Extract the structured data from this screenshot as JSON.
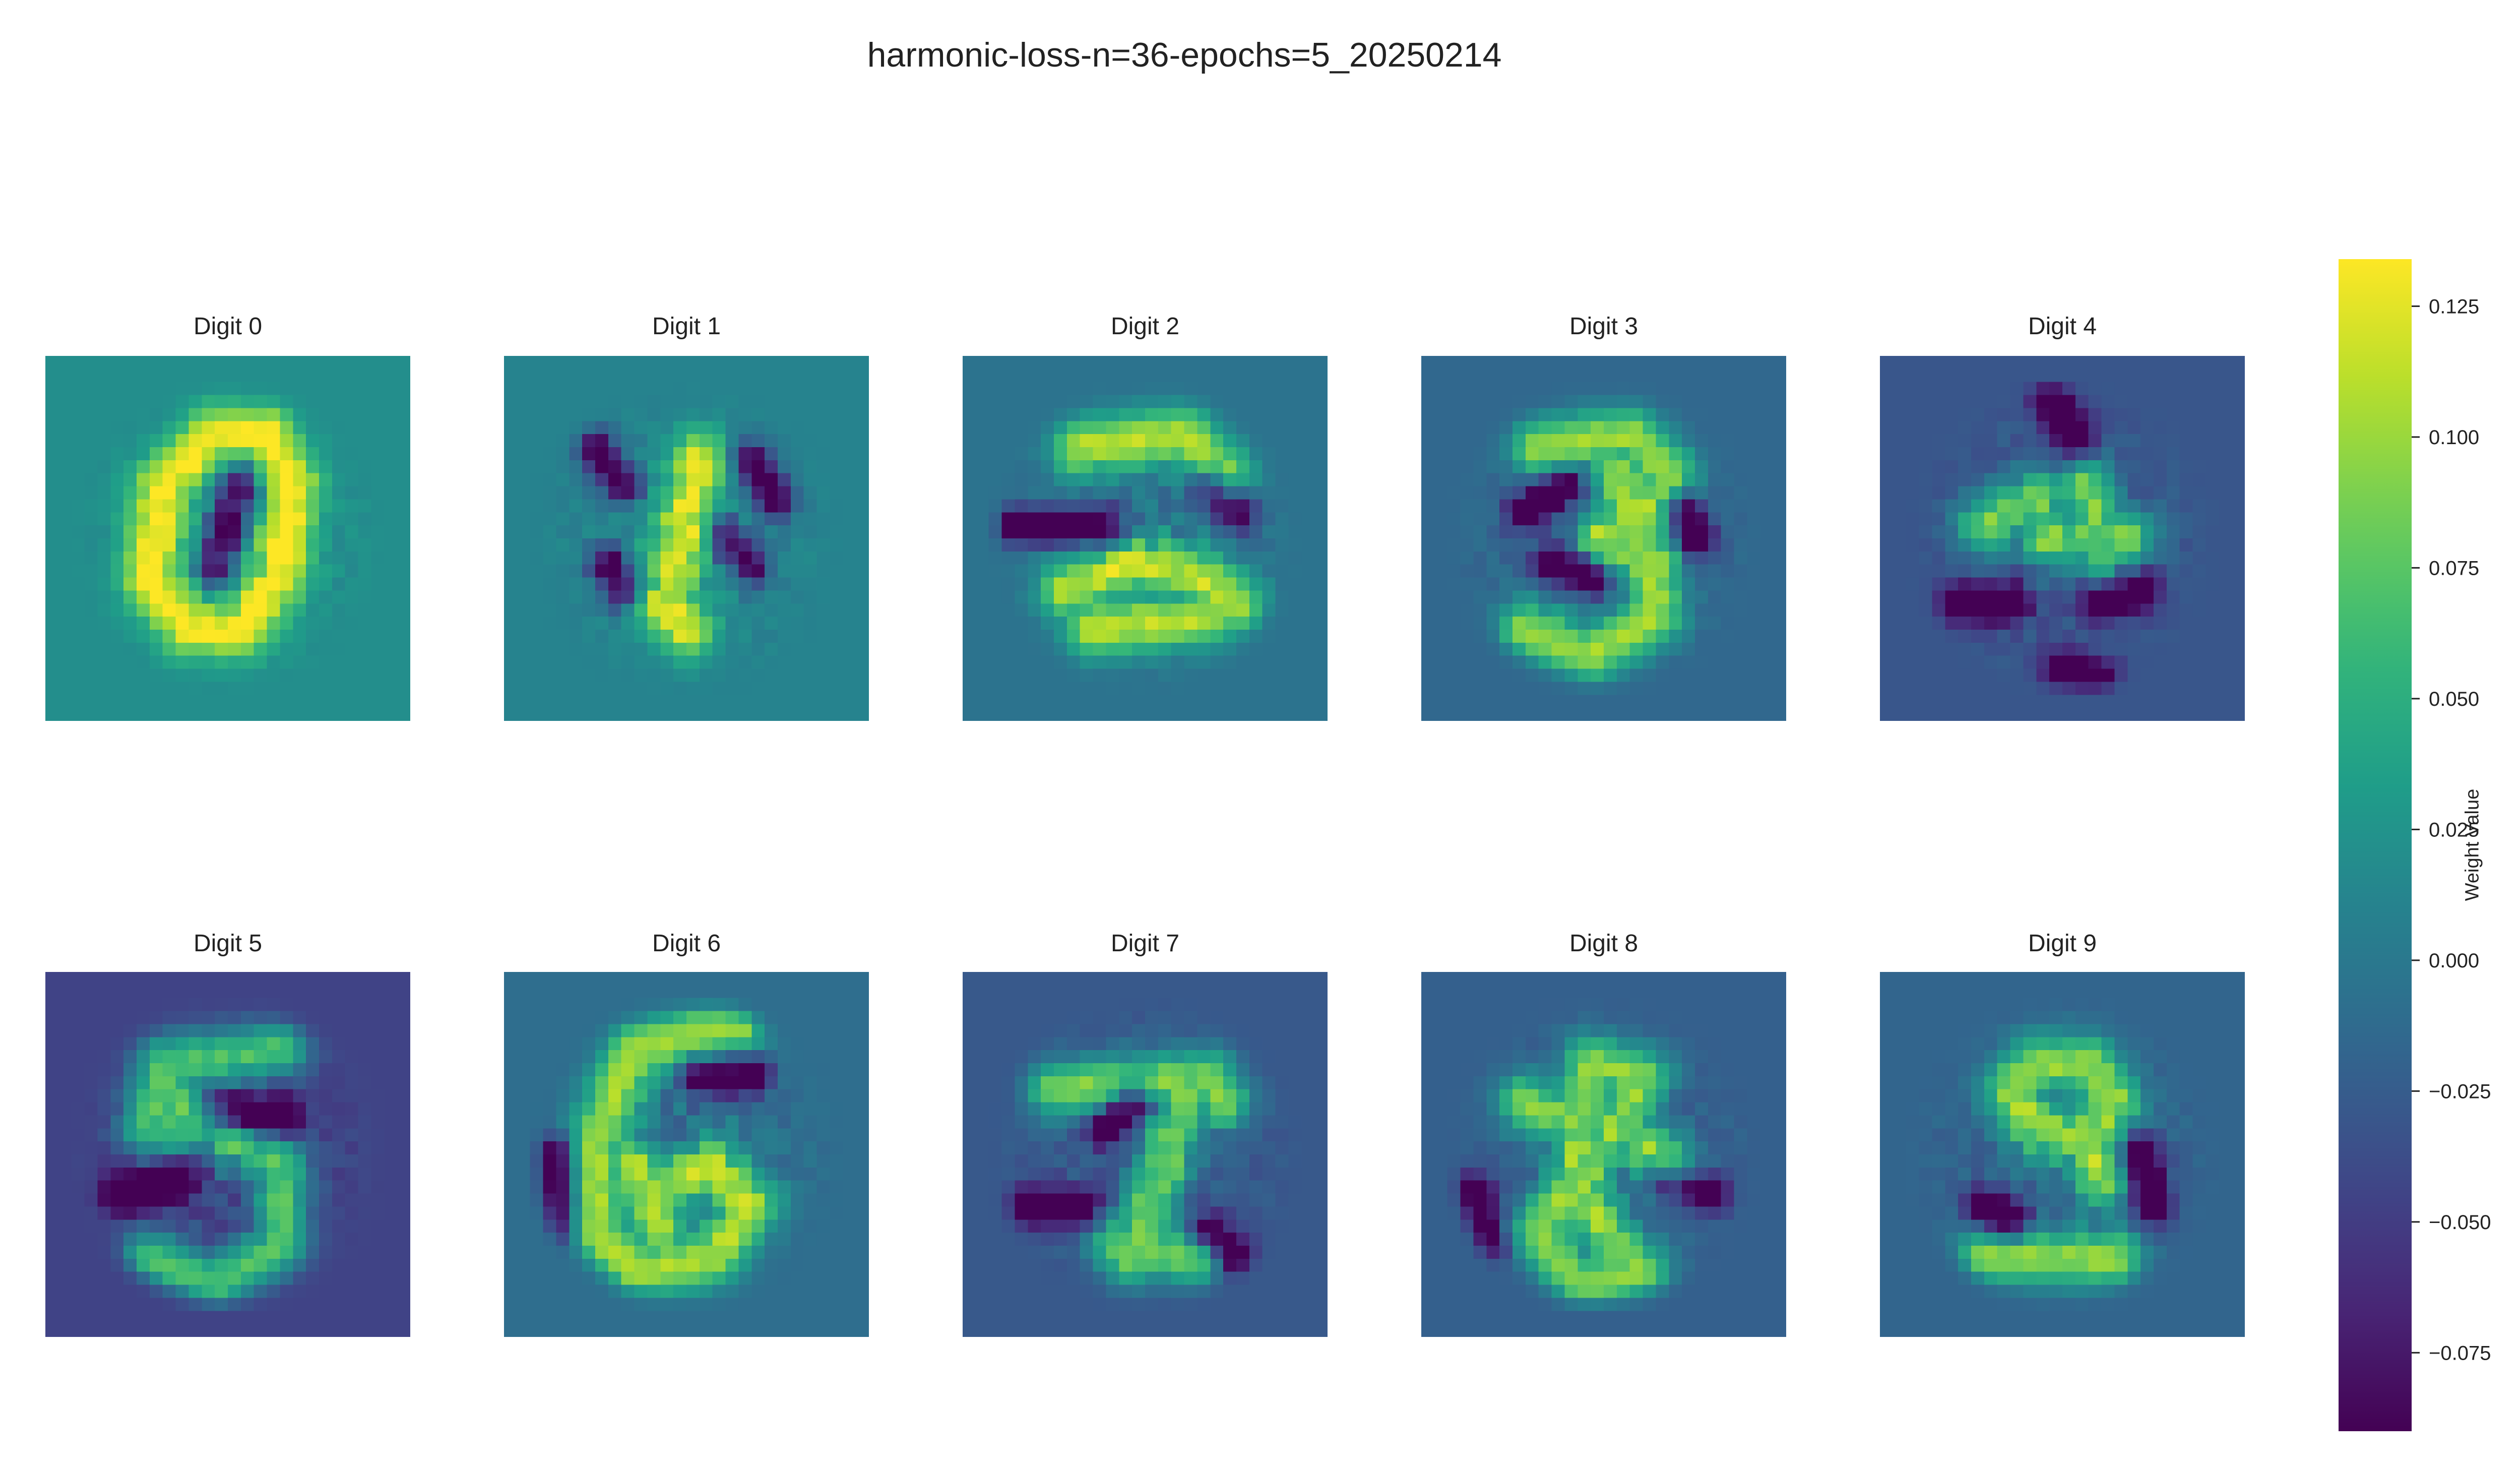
{
  "figure": {
    "title": "harmonic-loss-n=36-epochs=5_20250214"
  },
  "chart_data": {
    "type": "heatmap",
    "title": "harmonic-loss-n=36-epochs=5_20250214",
    "colormap": "viridis",
    "grid": "28x28 per panel",
    "panels": [
      {
        "label": "Digit 0",
        "digit": 0,
        "background": 0.02
      },
      {
        "label": "Digit 1",
        "digit": 1,
        "background": 0.01
      },
      {
        "label": "Digit 2",
        "digit": 2,
        "background": -0.005
      },
      {
        "label": "Digit 3",
        "digit": 3,
        "background": -0.015
      },
      {
        "label": "Digit 4",
        "digit": 4,
        "background": -0.03
      },
      {
        "label": "Digit 5",
        "digit": 5,
        "background": -0.045
      },
      {
        "label": "Digit 6",
        "digit": 6,
        "background": -0.01
      },
      {
        "label": "Digit 7",
        "digit": 7,
        "background": -0.028
      },
      {
        "label": "Digit 8",
        "digit": 8,
        "background": -0.022
      },
      {
        "label": "Digit 9",
        "digit": 9,
        "background": -0.018
      }
    ],
    "colorbar": {
      "label": "Weight Value",
      "range": [
        -0.09,
        0.134
      ],
      "ticks": [
        0.125,
        0.1,
        0.075,
        0.05,
        0.025,
        0.0,
        -0.025,
        -0.05,
        -0.075
      ],
      "tick_labels": [
        "0.125",
        "0.100",
        "0.075",
        "0.050",
        "0.025",
        "0.000",
        "−0.025",
        "−0.050",
        "−0.075"
      ]
    }
  }
}
